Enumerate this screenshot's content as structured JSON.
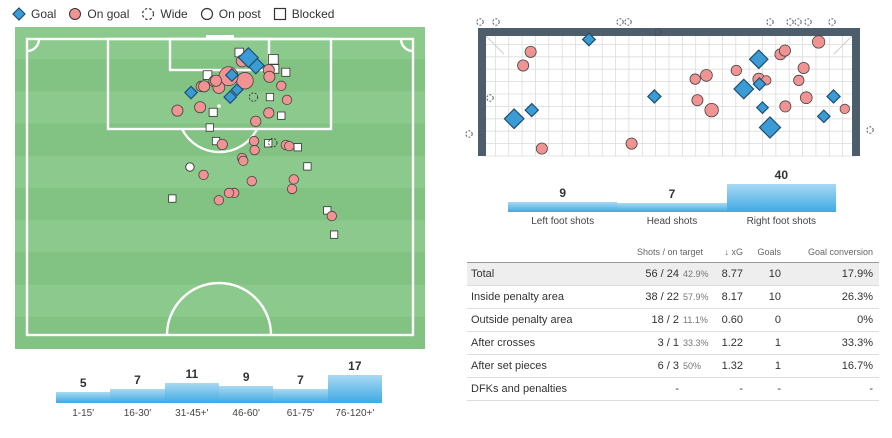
{
  "legend": {
    "items": [
      {
        "key": "goal",
        "label": "Goal"
      },
      {
        "key": "on_goal",
        "label": "On goal"
      },
      {
        "key": "wide",
        "label": "Wide"
      },
      {
        "key": "on_post",
        "label": "On post"
      },
      {
        "key": "blocked",
        "label": "Blocked"
      }
    ]
  },
  "colors": {
    "goal": "#3a9bd5",
    "on_goal": "#f19393",
    "pitch_light": "#8cc98c",
    "pitch_dark": "#82c282",
    "bar_top": "#a9d9f3",
    "bar_bottom": "#3fa9e3",
    "goal_frame": "#4d5d6c"
  },
  "chart_data": [
    {
      "type": "bar",
      "categories": [
        "1-15'",
        "16-30'",
        "31-45+'",
        "46-60'",
        "61-75'",
        "76-120+'"
      ],
      "values": [
        5,
        7,
        11,
        9,
        7,
        17
      ]
    },
    {
      "type": "bar",
      "categories": [
        "Left foot shots",
        "Head shots",
        "Right foot shots"
      ],
      "values": [
        9,
        7,
        40
      ]
    },
    {
      "type": "table",
      "columns": [
        "Shots / on target",
        "↓ xG",
        "Goals",
        "Goal conversion"
      ],
      "rows": [
        {
          "name": "Total",
          "shots": "56 / 24",
          "pct": "42.9%",
          "xg": "8.77",
          "goals": "10",
          "conv": "17.9%"
        },
        {
          "name": "Inside penalty area",
          "shots": "38 / 22",
          "pct": "57.9%",
          "xg": "8.17",
          "goals": "10",
          "conv": "26.3%"
        },
        {
          "name": "Outside penalty area",
          "shots": "18 / 2",
          "pct": "11.1%",
          "xg": "0.60",
          "goals": "0",
          "conv": "0%"
        },
        {
          "name": "After crosses",
          "shots": "3 / 1",
          "pct": "33.3%",
          "xg": "1.22",
          "goals": "1",
          "conv": "33.3%"
        },
        {
          "name": "After set pieces",
          "shots": "6 / 3",
          "pct": "50%",
          "xg": "1.32",
          "goals": "1",
          "conv": "16.7%"
        },
        {
          "name": "DFKs and penalties",
          "shots": "-",
          "pct": "",
          "xg": "-",
          "goals": "-",
          "conv": "-"
        }
      ]
    },
    {
      "type": "scatter",
      "x": [
        42.6,
        40.3,
        39.0,
        36.1,
        38.4,
        37.0,
        33.0,
        35.8,
        35.5,
        28.9,
        33.8,
        30.5,
        26.5,
        30.7,
        31.8,
        31.2,
        37.9,
        33.3,
        37.4,
        43.4,
        45.6,
        42.7,
        43.6,
        39.9,
        42.8,
        44.8,
        42.6,
        44.8,
        40.3,
        32.8,
        32.2,
        34.4,
        33.3,
        42.5,
        43.3,
        40.0,
        45.8,
        37.9,
        28.7,
        45.6,
        46.2,
        47.0,
        46.7,
        39.6,
        49.4,
        47.7,
        40.1,
        38.1,
        31.1,
        36.5,
        25.6,
        33.8,
        35.6,
        52.9,
        53.7,
        54.1
      ],
      "y": [
        5.5,
        4.7,
        3.3,
        6.4,
        7.4,
        9.0,
        7.5,
        10.3,
        6.6,
        9.5,
        8.6,
        12.1,
        12.7,
        8.4,
        6.4,
        8.4,
        3.9,
        7.4,
        2.4,
        3.6,
        5.9,
        6.7,
        5.3,
        10.3,
        10.3,
        8.3,
        13.1,
        13.6,
        14.6,
        13.0,
        15.7,
        18.7,
        18.1,
        18.5,
        18.4,
        18.1,
        10.8,
        21.1,
        22.7,
        18.8,
        19.0,
        24.9,
        26.6,
        25.2,
        22.6,
        19.2,
        19.7,
        21.6,
        24.1,
        27.3,
        28.3,
        28.6,
        27.3,
        30.4,
        31.4,
        34.7
      ],
      "size": [
        0.04,
        0.11,
        0.18,
        0.04,
        0.15,
        0.03,
        0.04,
        0.04,
        0.22,
        0.04,
        0.05,
        0.04,
        0.04,
        0.03,
        0.04,
        0.04,
        0.05,
        0.04,
        0.04,
        0.06,
        0.03,
        0.04,
        0.04,
        0.02,
        0.02,
        0.02,
        0.03,
        0.02,
        0.03,
        0.03,
        0.02,
        0.03,
        0.02,
        0.02,
        0.02,
        0.02,
        0.02,
        0.02,
        0.02,
        0.02,
        0.02,
        0.02,
        0.02,
        0.02,
        0.02,
        0.02,
        0.02,
        0.02,
        0.02,
        0.02,
        0.02,
        0.02,
        0.02,
        0.02,
        0.02,
        0.02
      ],
      "outcome": [
        "on_goal",
        "goal",
        "goal",
        "goal",
        "on_goal",
        "goal",
        "on_goal",
        "goal",
        "on_goal",
        "goal",
        "on_goal",
        "on_goal",
        "on_goal",
        "on_goal",
        "blocked",
        "on_goal",
        "on_goal",
        "on_goal",
        "blocked",
        "blocked",
        "blocked",
        "on_goal",
        "blocked",
        "wide",
        "blocked",
        "on_goal",
        "on_goal",
        "blocked",
        "on_goal",
        "blocked",
        "blocked",
        "on_goal",
        "blocked",
        "blocked",
        "wide",
        "on_goal",
        "on_goal",
        "on_goal",
        "on_post",
        "on_goal",
        "on_goal",
        "on_goal",
        "on_goal",
        "on_goal",
        "blocked",
        "blocked",
        "on_goal",
        "on_goal",
        "on_goal",
        "on_goal",
        "blocked",
        "on_goal",
        "on_goal",
        "blocked",
        "on_goal",
        "blocked"
      ]
    },
    {
      "type": "scatter",
      "x": [
        0.086,
        0.11,
        0.133,
        0.286,
        0.286,
        0.461,
        0.576,
        0.614,
        0.7,
        0.811,
        0.847,
        0.867,
        0.914,
        0.74,
        0.742,
        0.6,
        0.77,
        0.798,
        0.81,
        0.9,
        0.4,
        0.68,
        0.74,
        0.75,
        0.76,
        0.94,
        0.97,
        0.57,
        0.86,
        0.13,
        0.16
      ],
      "y": [
        0.7,
        0.27,
        0.63,
        0.06,
        0.06,
        0.52,
        0.55,
        0.63,
        0.46,
        0.6,
        0.39,
        0.53,
        0.68,
        0.22,
        0.42,
        0.35,
        0.77,
        0.18,
        0.15,
        0.08,
        0.9,
        0.31,
        0.38,
        0.61,
        0.39,
        0.52,
        0.62,
        0.38,
        0.29,
        0.16,
        0.94
      ],
      "size": [
        0.18,
        0.04,
        0.05,
        0.04,
        0.04,
        0.05,
        0.04,
        0.08,
        0.18,
        0.04,
        0.03,
        0.05,
        0.04,
        0.15,
        0.04,
        0.05,
        0.22,
        0.04,
        0.04,
        0.06,
        0.04,
        0.03,
        0.05,
        0.03,
        0.02,
        0.05,
        0.02,
        0.03,
        0.04,
        0.04,
        0.04
      ],
      "outcome": [
        "goal",
        "on_goal",
        "goal",
        "goal",
        "goal",
        "goal",
        "on_goal",
        "on_goal",
        "goal",
        "on_goal",
        "on_goal",
        "on_goal",
        "goal",
        "goal",
        "goal",
        "on_goal",
        "goal",
        "on_goal",
        "on_goal",
        "on_goal",
        "on_goal",
        "on_goal",
        "on_goal",
        "goal",
        "on_goal",
        "goal",
        "on_goal",
        "on_goal",
        "on_goal",
        "on_goal",
        "on_goal"
      ]
    }
  ]
}
